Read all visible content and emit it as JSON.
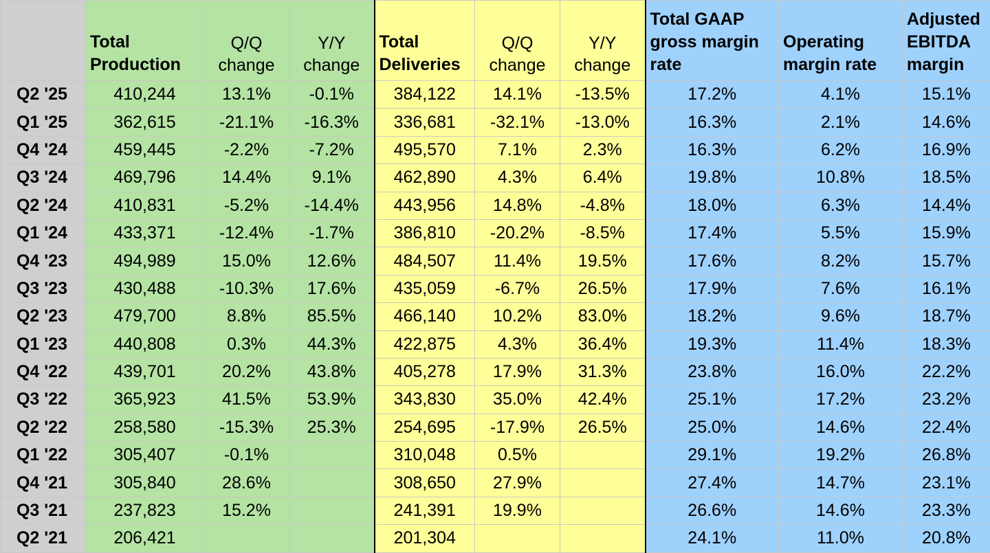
{
  "headers": {
    "total_production": "Total Production",
    "qq_change": "Q/Q change",
    "yy_change": "Y/Y change",
    "total_deliveries": "Total Deliveries",
    "gaap_margin": "Total GAAP gross margin rate",
    "operating_margin": "Operating margin rate",
    "ebitda_margin": "Adjusted EBITDA margin"
  },
  "rows": [
    {
      "q": "Q2 '25",
      "prod": "410,244",
      "pqq": "13.1%",
      "pyy": "-0.1%",
      "del": "384,122",
      "dqq": "14.1%",
      "dyy": "-13.5%",
      "gaap": "17.2%",
      "op": "4.1%",
      "ebitda": "15.1%"
    },
    {
      "q": "Q1 '25",
      "prod": "362,615",
      "pqq": "-21.1%",
      "pyy": "-16.3%",
      "del": "336,681",
      "dqq": "-32.1%",
      "dyy": "-13.0%",
      "gaap": "16.3%",
      "op": "2.1%",
      "ebitda": "14.6%"
    },
    {
      "q": "Q4 '24",
      "prod": "459,445",
      "pqq": "-2.2%",
      "pyy": "-7.2%",
      "del": "495,570",
      "dqq": "7.1%",
      "dyy": "2.3%",
      "gaap": "16.3%",
      "op": "6.2%",
      "ebitda": "16.9%"
    },
    {
      "q": "Q3 '24",
      "prod": "469,796",
      "pqq": "14.4%",
      "pyy": "9.1%",
      "del": "462,890",
      "dqq": "4.3%",
      "dyy": "6.4%",
      "gaap": "19.8%",
      "op": "10.8%",
      "ebitda": "18.5%"
    },
    {
      "q": "Q2 '24",
      "prod": "410,831",
      "pqq": "-5.2%",
      "pyy": "-14.4%",
      "del": "443,956",
      "dqq": "14.8%",
      "dyy": "-4.8%",
      "gaap": "18.0%",
      "op": "6.3%",
      "ebitda": "14.4%"
    },
    {
      "q": "Q1 '24",
      "prod": "433,371",
      "pqq": "-12.4%",
      "pyy": "-1.7%",
      "del": "386,810",
      "dqq": "-20.2%",
      "dyy": "-8.5%",
      "gaap": "17.4%",
      "op": "5.5%",
      "ebitda": "15.9%"
    },
    {
      "q": "Q4 '23",
      "prod": "494,989",
      "pqq": "15.0%",
      "pyy": "12.6%",
      "del": "484,507",
      "dqq": "11.4%",
      "dyy": "19.5%",
      "gaap": "17.6%",
      "op": "8.2%",
      "ebitda": "15.7%"
    },
    {
      "q": "Q3 '23",
      "prod": "430,488",
      "pqq": "-10.3%",
      "pyy": "17.6%",
      "del": "435,059",
      "dqq": "-6.7%",
      "dyy": "26.5%",
      "gaap": "17.9%",
      "op": "7.6%",
      "ebitda": "16.1%"
    },
    {
      "q": "Q2 '23",
      "prod": "479,700",
      "pqq": "8.8%",
      "pyy": "85.5%",
      "del": "466,140",
      "dqq": "10.2%",
      "dyy": "83.0%",
      "gaap": "18.2%",
      "op": "9.6%",
      "ebitda": "18.7%"
    },
    {
      "q": "Q1 '23",
      "prod": "440,808",
      "pqq": "0.3%",
      "pyy": "44.3%",
      "del": "422,875",
      "dqq": "4.3%",
      "dyy": "36.4%",
      "gaap": "19.3%",
      "op": "11.4%",
      "ebitda": "18.3%"
    },
    {
      "q": "Q4 '22",
      "prod": "439,701",
      "pqq": "20.2%",
      "pyy": "43.8%",
      "del": "405,278",
      "dqq": "17.9%",
      "dyy": "31.3%",
      "gaap": "23.8%",
      "op": "16.0%",
      "ebitda": "22.2%"
    },
    {
      "q": "Q3 '22",
      "prod": "365,923",
      "pqq": "41.5%",
      "pyy": "53.9%",
      "del": "343,830",
      "dqq": "35.0%",
      "dyy": "42.4%",
      "gaap": "25.1%",
      "op": "17.2%",
      "ebitda": "23.2%"
    },
    {
      "q": "Q2 '22",
      "prod": "258,580",
      "pqq": "-15.3%",
      "pyy": "25.3%",
      "del": "254,695",
      "dqq": "-17.9%",
      "dyy": "26.5%",
      "gaap": "25.0%",
      "op": "14.6%",
      "ebitda": "22.4%"
    },
    {
      "q": "Q1 '22",
      "prod": "305,407",
      "pqq": "-0.1%",
      "pyy": "",
      "del": "310,048",
      "dqq": "0.5%",
      "dyy": "",
      "gaap": "29.1%",
      "op": "19.2%",
      "ebitda": "26.8%"
    },
    {
      "q": "Q4 '21",
      "prod": "305,840",
      "pqq": "28.6%",
      "pyy": "",
      "del": "308,650",
      "dqq": "27.9%",
      "dyy": "",
      "gaap": "27.4%",
      "op": "14.7%",
      "ebitda": "23.1%"
    },
    {
      "q": "Q3 '21",
      "prod": "237,823",
      "pqq": "15.2%",
      "pyy": "",
      "del": "241,391",
      "dqq": "19.9%",
      "dyy": "",
      "gaap": "26.6%",
      "op": "14.6%",
      "ebitda": "23.3%"
    },
    {
      "q": "Q2 '21",
      "prod": "206,421",
      "pqq": "",
      "pyy": "",
      "del": "201,304",
      "dqq": "",
      "dyy": "",
      "gaap": "24.1%",
      "op": "11.0%",
      "ebitda": "20.8%"
    }
  ],
  "colors": {
    "quarter_bg": "#cfcfcf",
    "production_bg": "#b4e3a3",
    "deliveries_bg": "#ffff99",
    "margins_bg": "#9fd1fd"
  }
}
